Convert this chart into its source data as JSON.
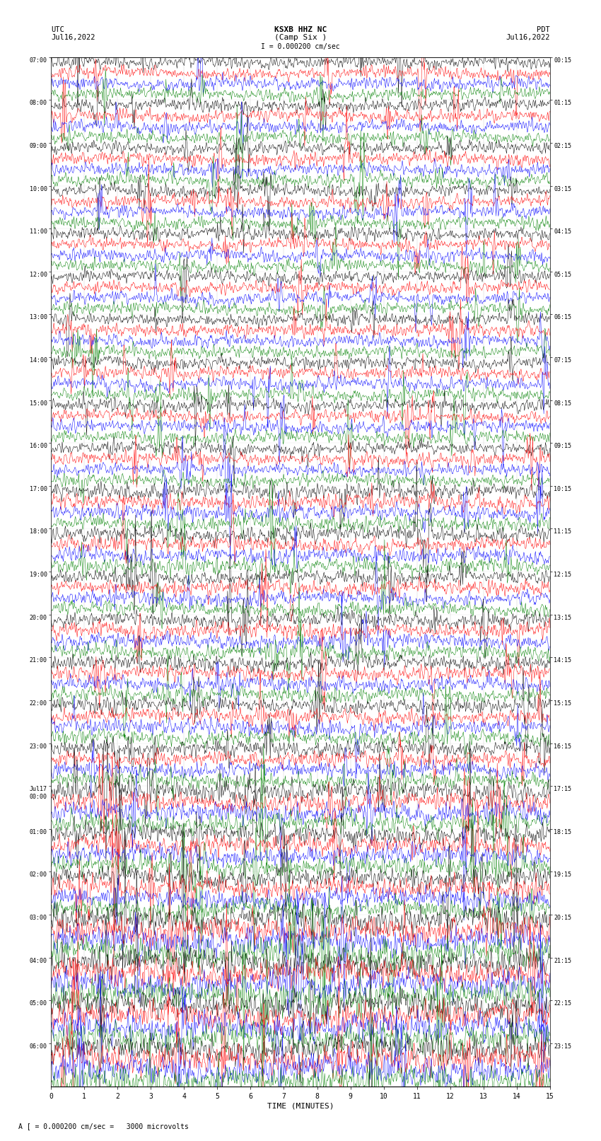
{
  "title_line1": "KSXB HHZ NC",
  "title_line2": "(Camp Six )",
  "title_scale": "I = 0.000200 cm/sec",
  "left_header_line1": "UTC",
  "left_header_line2": "Jul16,2022",
  "right_header_line1": "PDT",
  "right_header_line2": "Jul16,2022",
  "footer": "A [ = 0.000200 cm/sec =   3000 microvolts",
  "xlabel": "TIME (MINUTES)",
  "xticks": [
    0,
    1,
    2,
    3,
    4,
    5,
    6,
    7,
    8,
    9,
    10,
    11,
    12,
    13,
    14,
    15
  ],
  "left_labels": [
    "07:00",
    "08:00",
    "09:00",
    "10:00",
    "11:00",
    "12:00",
    "13:00",
    "14:00",
    "15:00",
    "16:00",
    "17:00",
    "18:00",
    "19:00",
    "20:00",
    "21:00",
    "22:00",
    "23:00",
    "Jul17\n00:00",
    "01:00",
    "02:00",
    "03:00",
    "04:00",
    "05:00",
    "06:00"
  ],
  "right_labels": [
    "00:15",
    "01:15",
    "02:15",
    "03:15",
    "04:15",
    "05:15",
    "06:15",
    "07:15",
    "08:15",
    "09:15",
    "10:15",
    "11:15",
    "12:15",
    "13:15",
    "14:15",
    "15:15",
    "16:15",
    "17:15",
    "18:15",
    "19:15",
    "20:15",
    "21:15",
    "22:15",
    "23:15"
  ],
  "n_hours": 24,
  "traces_per_hour": 4,
  "colors": [
    "black",
    "red",
    "blue",
    "green"
  ],
  "noise_seed": 42,
  "bg_color": "white",
  "duration_minutes": 15,
  "samples_per_trace": 900,
  "figsize": [
    8.5,
    16.13
  ],
  "dpi": 100
}
